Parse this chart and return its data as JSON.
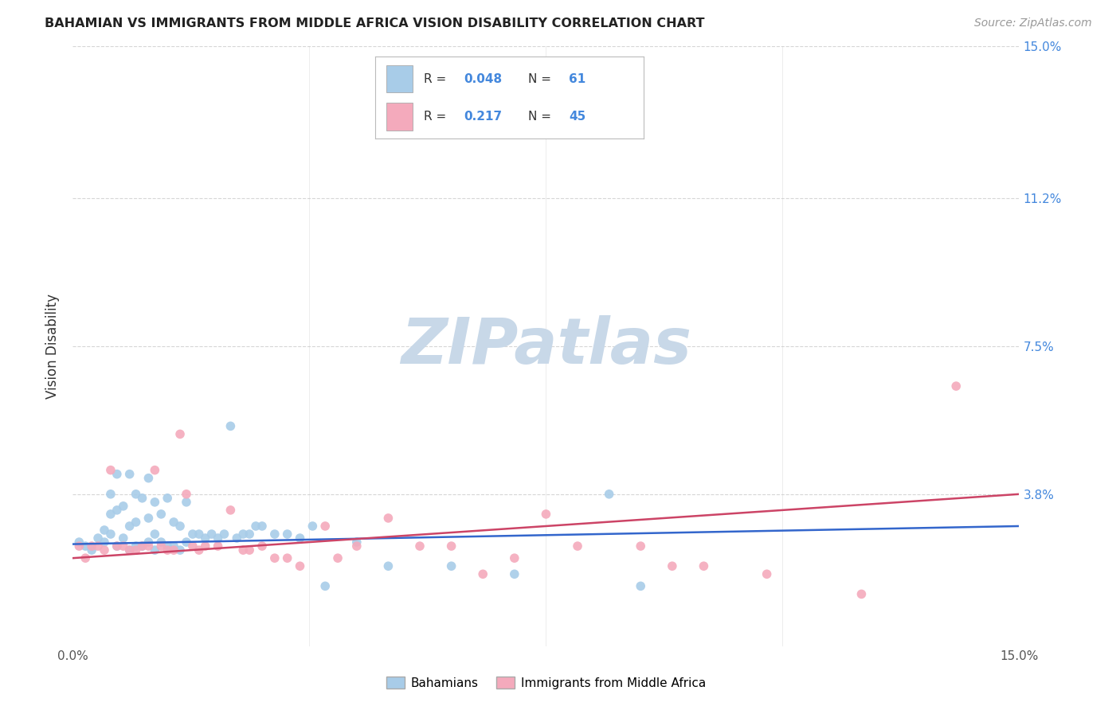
{
  "title": "BAHAMIAN VS IMMIGRANTS FROM MIDDLE AFRICA VISION DISABILITY CORRELATION CHART",
  "source": "Source: ZipAtlas.com",
  "ylabel": "Vision Disability",
  "xlim": [
    0.0,
    0.15
  ],
  "ylim": [
    0.0,
    0.15
  ],
  "ytick_labels_right": [
    "15.0%",
    "11.2%",
    "7.5%",
    "3.8%"
  ],
  "ytick_positions_right": [
    0.15,
    0.112,
    0.075,
    0.038
  ],
  "series1_label": "Bahamians",
  "series2_label": "Immigrants from Middle Africa",
  "series1_color": "#A8CCE8",
  "series2_color": "#F4AABC",
  "series1_line_color": "#3366CC",
  "series2_line_color": "#CC4466",
  "legend_R1": "0.048",
  "legend_N1": "61",
  "legend_R2": "0.217",
  "legend_N2": "45",
  "legend_text_color": "#4488DD",
  "legend_label_color": "#333333",
  "watermark_text": "ZIPatlas",
  "watermark_color": "#C8D8E8",
  "background_color": "#ffffff",
  "grid_color": "#cccccc",
  "series1_x": [
    0.001,
    0.002,
    0.003,
    0.004,
    0.005,
    0.005,
    0.006,
    0.006,
    0.006,
    0.007,
    0.007,
    0.007,
    0.008,
    0.008,
    0.009,
    0.009,
    0.009,
    0.01,
    0.01,
    0.01,
    0.011,
    0.011,
    0.012,
    0.012,
    0.012,
    0.013,
    0.013,
    0.013,
    0.014,
    0.014,
    0.015,
    0.015,
    0.016,
    0.016,
    0.017,
    0.017,
    0.018,
    0.018,
    0.019,
    0.02,
    0.021,
    0.022,
    0.023,
    0.024,
    0.025,
    0.026,
    0.027,
    0.028,
    0.029,
    0.03,
    0.032,
    0.034,
    0.036,
    0.038,
    0.04,
    0.045,
    0.05,
    0.06,
    0.07,
    0.085,
    0.09
  ],
  "series1_y": [
    0.026,
    0.025,
    0.024,
    0.027,
    0.026,
    0.029,
    0.028,
    0.033,
    0.038,
    0.025,
    0.034,
    0.043,
    0.027,
    0.035,
    0.024,
    0.03,
    0.043,
    0.025,
    0.031,
    0.038,
    0.025,
    0.037,
    0.026,
    0.032,
    0.042,
    0.024,
    0.028,
    0.036,
    0.026,
    0.033,
    0.025,
    0.037,
    0.025,
    0.031,
    0.024,
    0.03,
    0.026,
    0.036,
    0.028,
    0.028,
    0.027,
    0.028,
    0.027,
    0.028,
    0.055,
    0.027,
    0.028,
    0.028,
    0.03,
    0.03,
    0.028,
    0.028,
    0.027,
    0.03,
    0.015,
    0.026,
    0.02,
    0.02,
    0.018,
    0.038,
    0.015
  ],
  "series2_x": [
    0.001,
    0.002,
    0.003,
    0.004,
    0.005,
    0.006,
    0.007,
    0.008,
    0.009,
    0.01,
    0.011,
    0.012,
    0.013,
    0.014,
    0.015,
    0.016,
    0.017,
    0.018,
    0.019,
    0.02,
    0.021,
    0.023,
    0.025,
    0.027,
    0.028,
    0.03,
    0.032,
    0.034,
    0.036,
    0.04,
    0.042,
    0.045,
    0.05,
    0.055,
    0.06,
    0.065,
    0.07,
    0.075,
    0.08,
    0.09,
    0.095,
    0.1,
    0.11,
    0.125,
    0.14
  ],
  "series2_y": [
    0.025,
    0.022,
    0.025,
    0.025,
    0.024,
    0.044,
    0.025,
    0.025,
    0.024,
    0.024,
    0.025,
    0.025,
    0.044,
    0.025,
    0.024,
    0.024,
    0.053,
    0.038,
    0.025,
    0.024,
    0.025,
    0.025,
    0.034,
    0.024,
    0.024,
    0.025,
    0.022,
    0.022,
    0.02,
    0.03,
    0.022,
    0.025,
    0.032,
    0.025,
    0.025,
    0.018,
    0.022,
    0.033,
    0.025,
    0.025,
    0.02,
    0.02,
    0.018,
    0.013,
    0.065
  ],
  "regression1_x0": 0.0,
  "regression1_y0": 0.0255,
  "regression1_x1": 0.15,
  "regression1_y1": 0.03,
  "regression2_x0": 0.0,
  "regression2_y0": 0.022,
  "regression2_x1": 0.15,
  "regression2_y1": 0.038
}
